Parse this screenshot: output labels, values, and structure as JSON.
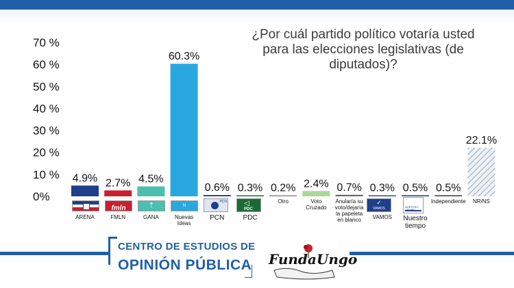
{
  "title_lines": [
    "¿Por cuál partido político votaría usted",
    "para las elecciones legislativas (de",
    "diputados)?"
  ],
  "chart_data": {
    "type": "bar",
    "title": "¿Por cuál partido político votaría usted para las elecciones legislativas (de diputados)?",
    "categories": [
      "ARENA",
      "FMLN",
      "GANA",
      "Nuevas Ideas",
      "PCN",
      "PDC",
      "Otro",
      "Voto Cruzado",
      "Anularía su voto/dejaría la papeleta en blanco",
      "VAMOS",
      "Nuestro tiempo",
      "Independiente",
      "NR/NS"
    ],
    "values": [
      4.9,
      2.7,
      4.5,
      60.3,
      0.6,
      0.3,
      0.2,
      2.4,
      0.7,
      0.3,
      0.5,
      0.5,
      22.1
    ],
    "value_labels": [
      "4.9%",
      "2.7%",
      "4.5%",
      "60.3%",
      "0.6%",
      "0.3%",
      "0.2%",
      "2.4%",
      "0.7%",
      "0.3%",
      "0.5%",
      "0.5%",
      "22.1%"
    ],
    "x_labels": [
      [
        "ARENA"
      ],
      [
        "FMLN"
      ],
      [
        "GANA"
      ],
      [
        "Nuevas",
        "Ideas"
      ],
      [
        "PCN"
      ],
      [
        "PDC"
      ],
      [
        "Otro"
      ],
      [
        "Voto",
        "Cruzado"
      ],
      [
        "Anularía su",
        "voto/dejaría",
        "la papeleta",
        "en blanco"
      ],
      [
        "VAMOS"
      ],
      [
        "Nuestro",
        "tiempo"
      ],
      [
        "Independiente"
      ],
      [
        "NR/NS"
      ]
    ],
    "bar_colors": [
      "#1f3f8a",
      "#c8202f",
      "#4cc0b0",
      "#29a8e0",
      "#2a3f88",
      "#1c6b36",
      "#888888",
      "#a8d89a",
      "#6a6a6a",
      "#2a4a9a",
      "#2a3f88",
      "#444444",
      "#b0b8c8"
    ],
    "ylim": [
      0,
      70
    ],
    "yticks": [
      0,
      10,
      20,
      30,
      40,
      50,
      60,
      70
    ],
    "ytick_labels": [
      "0%",
      "10 %",
      "20 %",
      "30 %",
      "40 %",
      "50 %",
      "60 %",
      "70 %"
    ],
    "grid": false,
    "legend": "none"
  },
  "logos": {
    "arena_color": "#1f3f8a",
    "fmln_text": "fmln",
    "fmln_color": "#c8202f",
    "gana_color": "#4cc0b0",
    "ni_color": "#29a8e0",
    "pcn_text": "PCN",
    "pcn_color": "#1f3f8a",
    "pdc_text": "PDC",
    "pdc_color": "#1c6b36",
    "vamos_text": "VAMOS",
    "vamos_color": "#1f3f8a",
    "nt_text": "NUESTRO TIEMPO"
  },
  "footer": {
    "line1": "CENTRO DE ESTUDIOS DE",
    "line2": "OPINIÓN PÚBLICA",
    "brand": "FundaUngo",
    "brand_color": "#c8202f",
    "accent": "#1f5fa8"
  }
}
